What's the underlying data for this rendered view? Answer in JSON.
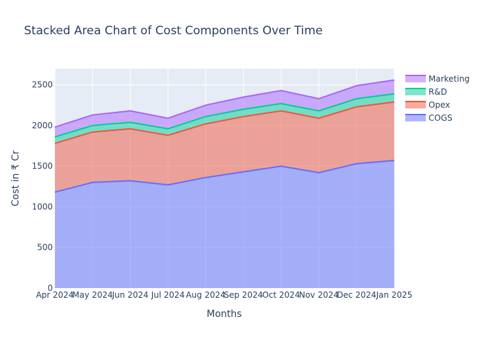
{
  "chart_data": {
    "type": "area",
    "stacked": true,
    "title": "Stacked Area Chart of Cost Components Over Time",
    "xlabel": "Months",
    "ylabel": "Cost in ₹ Cr",
    "categories": [
      "Apr 2024",
      "May 2024",
      "Jun 2024",
      "Jul 2024",
      "Aug 2024",
      "Sep 2024",
      "Oct 2024",
      "Nov 2024",
      "Dec 2024",
      "Jan 2025"
    ],
    "ylim": [
      0,
      2700
    ],
    "yticks": [
      0,
      500,
      1000,
      1500,
      2000,
      2500
    ],
    "grid": true,
    "legend_position": "top-right",
    "series": [
      {
        "name": "COGS",
        "color": "#636efa",
        "values": [
          1180,
          1300,
          1320,
          1270,
          1360,
          1430,
          1500,
          1420,
          1530,
          1570
        ]
      },
      {
        "name": "Opex",
        "color": "#EF553B",
        "values": [
          600,
          620,
          640,
          610,
          660,
          680,
          680,
          670,
          700,
          720
        ]
      },
      {
        "name": "R&D",
        "color": "#00cc96",
        "values": [
          80,
          80,
          80,
          80,
          90,
          90,
          90,
          90,
          100,
          100
        ]
      },
      {
        "name": "Marketing",
        "color": "#ab63fa",
        "values": [
          120,
          130,
          140,
          130,
          140,
          150,
          160,
          150,
          160,
          170
        ]
      }
    ]
  }
}
